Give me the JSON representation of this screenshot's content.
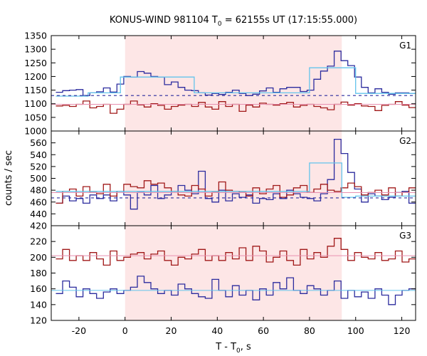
{
  "chart_data": {
    "type": "line",
    "title": {
      "prefix": "KONUS-WIND 981104 T",
      "sub": "0",
      "suffix": " = 62155s UT (17:15:55.000)"
    },
    "xlabel": {
      "prefix": "T - T",
      "sub": "0",
      "suffix": ", s"
    },
    "ylabel": "counts / sec",
    "xlim": [
      -32,
      126
    ],
    "xticks": [
      -20,
      0,
      20,
      40,
      60,
      80,
      100,
      120
    ],
    "shaded_interval": {
      "x0": 0,
      "x1": 94,
      "color": "#fde6e6"
    },
    "colors": {
      "blue": "#2b2b9e",
      "red": "#a01818",
      "lightblue": "#62c4ec",
      "pink": "#e890b0",
      "dashed": "#2b2b9e"
    },
    "panels": [
      {
        "label": "G1",
        "ylim": [
          1000,
          1350
        ],
        "yticks": [
          1000,
          1050,
          1100,
          1150,
          1200,
          1250,
          1300,
          1350
        ],
        "series": [
          {
            "color": "blue",
            "style": "step",
            "x0": -30,
            "dx": 2.944,
            "values": [
              1142,
              1148,
              1150,
              1152,
              1130,
              1140,
              1144,
              1158,
              1143,
              1172,
              1200,
              1198,
              1218,
              1212,
              1200,
              1198,
              1170,
              1180,
              1160,
              1150,
              1148,
              1140,
              1132,
              1138,
              1134,
              1142,
              1150,
              1138,
              1130,
              1135,
              1147,
              1158,
              1142,
              1155,
              1160,
              1160,
              1145,
              1150,
              1190,
              1220,
              1238,
              1293,
              1258,
              1240,
              1198,
              1160,
              1140,
              1155,
              1142,
              1135,
              1140,
              1140,
              1138,
              1135,
              1145
            ]
          },
          {
            "color": "red",
            "style": "step",
            "x0": -30,
            "dx": 2.944,
            "values": [
              1092,
              1094,
              1090,
              1098,
              1110,
              1085,
              1090,
              1098,
              1065,
              1080,
              1098,
              1110,
              1096,
              1088,
              1100,
              1094,
              1080,
              1090,
              1095,
              1098,
              1090,
              1105,
              1088,
              1080,
              1108,
              1090,
              1098,
              1072,
              1095,
              1088,
              1102,
              1098,
              1095,
              1100,
              1105,
              1088,
              1094,
              1098,
              1090,
              1085,
              1078,
              1098,
              1106,
              1095,
              1100,
              1092,
              1090,
              1075,
              1094,
              1098,
              1108,
              1095,
              1086,
              1102,
              1098
            ]
          },
          {
            "color": "lightblue",
            "style": "step",
            "x0": -30,
            "segments": [
              [
                -30,
                -16,
                1128
              ],
              [
                -16,
                -2,
                1140
              ],
              [
                -2,
                30,
                1198
              ],
              [
                30,
                80,
                1140
              ],
              [
                80,
                94,
                1232
              ],
              [
                94,
                100,
                1232
              ],
              [
                100,
                126,
                1138
              ]
            ]
          },
          {
            "color": "pink",
            "style": "flat",
            "y": 1098
          },
          {
            "color": "dashed",
            "style": "dashed",
            "y": 1130
          }
        ]
      },
      {
        "label": "G2",
        "ylim": [
          420,
          580
        ],
        "yticks": [
          420,
          440,
          460,
          480,
          500,
          520,
          540,
          560
        ],
        "series": [
          {
            "color": "blue",
            "style": "step",
            "x0": -30,
            "dx": 2.944,
            "values": [
              458,
              470,
              462,
              466,
              458,
              472,
              466,
              472,
              462,
              478,
              472,
              448,
              476,
              472,
              488,
              466,
              472,
              478,
              488,
              480,
              474,
              512,
              466,
              460,
              480,
              462,
              474,
              468,
              472,
              458,
              466,
              464,
              474,
              466,
              480,
              474,
              468,
              466,
              462,
              474,
              498,
              566,
              542,
              510,
              482,
              460,
              474,
              470,
              464,
              468,
              476,
              478,
              458,
              462,
              452
            ]
          },
          {
            "color": "red",
            "style": "step",
            "x0": -30,
            "dx": 2.944,
            "values": [
              458,
              478,
              482,
              470,
              486,
              476,
              474,
              490,
              470,
              478,
              490,
              486,
              484,
              496,
              490,
              492,
              484,
              478,
              472,
              470,
              488,
              482,
              470,
              476,
              494,
              480,
              478,
              476,
              470,
              484,
              474,
              482,
              488,
              468,
              472,
              484,
              488,
              476,
              482,
              490,
              480,
              478,
              484,
              492,
              486,
              472,
              476,
              480,
              472,
              484,
              470,
              476,
              484,
              478,
              474
            ]
          },
          {
            "color": "lightblue",
            "style": "step",
            "x0": -30,
            "segments": [
              [
                -30,
                80,
                478
              ],
              [
                80,
                94,
                526
              ],
              [
                94,
                100,
                468
              ],
              [
                100,
                126,
                470
              ]
            ]
          },
          {
            "color": "pink",
            "style": "flat",
            "y": 476
          },
          {
            "color": "dashed",
            "style": "dashed",
            "y": 467
          }
        ]
      },
      {
        "label": "G3",
        "ylim": [
          120,
          240
        ],
        "yticks": [
          120,
          140,
          160,
          180,
          200,
          220
        ],
        "series": [
          {
            "color": "red",
            "style": "step",
            "x0": -30,
            "dx": 2.944,
            "values": [
              198,
              210,
              196,
              202,
              196,
              206,
              198,
              190,
              208,
              196,
              200,
              204,
              206,
              198,
              204,
              208,
              196,
              190,
              200,
              198,
              204,
              210,
              196,
              202,
              196,
              206,
              198,
              212,
              196,
              214,
              208,
              194,
              200,
              208,
              196,
              190,
              210,
              198,
              206,
              200,
              214,
              224,
              210,
              196,
              206,
              200,
              198,
              206,
              196,
              198,
              208,
              194,
              198,
              204,
              196
            ]
          },
          {
            "color": "blue",
            "style": "step",
            "x0": -30,
            "dx": 2.944,
            "values": [
              154,
              170,
              162,
              150,
              160,
              154,
              148,
              156,
              160,
              154,
              158,
              162,
              176,
              168,
              160,
              154,
              158,
              152,
              166,
              160,
              154,
              150,
              148,
              172,
              158,
              150,
              164,
              152,
              158,
              146,
              160,
              152,
              168,
              160,
              174,
              158,
              154,
              164,
              160,
              152,
              158,
              170,
              148,
              158,
              150,
              156,
              148,
              160,
              152,
              140,
              152,
              158,
              160,
              154,
              162
            ]
          },
          {
            "color": "lightblue",
            "style": "flat",
            "y": 158
          },
          {
            "color": "pink",
            "style": "flat",
            "y": 202
          }
        ]
      }
    ]
  }
}
